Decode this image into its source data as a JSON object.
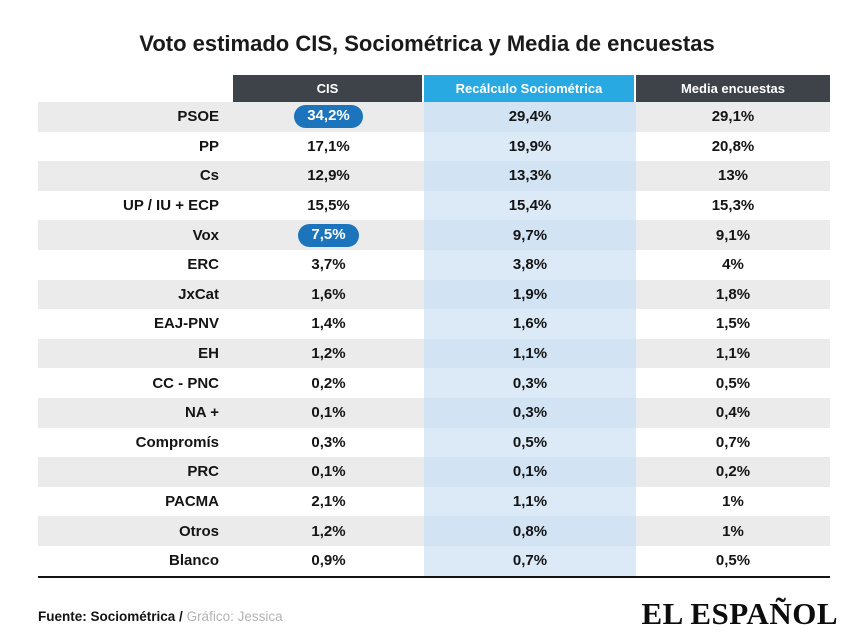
{
  "title": "Voto estimado CIS, Sociométrica y Media de encuestas",
  "table": {
    "headers": [
      "CIS",
      "Recálculo Sociométrica",
      "Media encuestas"
    ],
    "rows": [
      {
        "party": "PSOE",
        "cis": "34,2%",
        "socio": "29,4%",
        "media": "29,1%",
        "cis_highlight": true
      },
      {
        "party": "PP",
        "cis": "17,1%",
        "socio": "19,9%",
        "media": "20,8%",
        "cis_highlight": false
      },
      {
        "party": "Cs",
        "cis": "12,9%",
        "socio": "13,3%",
        "media": "13%",
        "cis_highlight": false
      },
      {
        "party": "UP / IU + ECP",
        "cis": "15,5%",
        "socio": "15,4%",
        "media": "15,3%",
        "cis_highlight": false
      },
      {
        "party": "Vox",
        "cis": "7,5%",
        "socio": "9,7%",
        "media": "9,1%",
        "cis_highlight": true
      },
      {
        "party": "ERC",
        "cis": "3,7%",
        "socio": "3,8%",
        "media": "4%",
        "cis_highlight": false
      },
      {
        "party": "JxCat",
        "cis": "1,6%",
        "socio": "1,9%",
        "media": "1,8%",
        "cis_highlight": false
      },
      {
        "party": "EAJ-PNV",
        "cis": "1,4%",
        "socio": "1,6%",
        "media": "1,5%",
        "cis_highlight": false
      },
      {
        "party": "EH",
        "cis": "1,2%",
        "socio": "1,1%",
        "media": "1,1%",
        "cis_highlight": false
      },
      {
        "party": "CC - PNC",
        "cis": "0,2%",
        "socio": "0,3%",
        "media": "0,5%",
        "cis_highlight": false
      },
      {
        "party": "NA +",
        "cis": "0,1%",
        "socio": "0,3%",
        "media": "0,4%",
        "cis_highlight": false
      },
      {
        "party": "Compromís",
        "cis": "0,3%",
        "socio": "0,5%",
        "media": "0,7%",
        "cis_highlight": false
      },
      {
        "party": "PRC",
        "cis": "0,1%",
        "socio": "0,1%",
        "media": "0,2%",
        "cis_highlight": false
      },
      {
        "party": "PACMA",
        "cis": "2,1%",
        "socio": "1,1%",
        "media": "1%",
        "cis_highlight": false
      },
      {
        "party": "Otros",
        "cis": "1,2%",
        "socio": "0,8%",
        "media": "1%",
        "cis_highlight": false
      },
      {
        "party": "Blanco",
        "cis": "0,9%",
        "socio": "0,7%",
        "media": "0,5%",
        "cis_highlight": false
      }
    ]
  },
  "footer": {
    "source": "Fuente: Sociométrica /",
    "credit": "Gráfico: Jessica"
  },
  "brand": "EL ESPAÑOL",
  "colors": {
    "header_dark": "#3e4349",
    "header_blue": "#29a9e1",
    "column_blue": "#dceaf8",
    "column_blue_striped": "#d2e4f4",
    "row_gray": "#ebebeb",
    "pill_blue": "#1b74bc"
  },
  "chart_data": {
    "type": "table",
    "title": "Voto estimado CIS, Sociométrica y Media de encuestas",
    "categories": [
      "PSOE",
      "PP",
      "Cs",
      "UP / IU + ECP",
      "Vox",
      "ERC",
      "JxCat",
      "EAJ-PNV",
      "EH",
      "CC - PNC",
      "NA +",
      "Compromís",
      "PRC",
      "PACMA",
      "Otros",
      "Blanco"
    ],
    "series": [
      {
        "name": "CIS",
        "values": [
          34.2,
          17.1,
          12.9,
          15.5,
          7.5,
          3.7,
          1.6,
          1.4,
          1.2,
          0.2,
          0.1,
          0.3,
          0.1,
          2.1,
          1.2,
          0.9
        ]
      },
      {
        "name": "Recálculo Sociométrica",
        "values": [
          29.4,
          19.9,
          13.3,
          15.4,
          9.7,
          3.8,
          1.9,
          1.6,
          1.1,
          0.3,
          0.3,
          0.5,
          0.1,
          1.1,
          0.8,
          0.7
        ]
      },
      {
        "name": "Media encuestas",
        "values": [
          29.1,
          20.8,
          13.0,
          15.3,
          9.1,
          4.0,
          1.8,
          1.5,
          1.1,
          0.5,
          0.4,
          0.7,
          0.2,
          1.0,
          1.0,
          0.5
        ]
      }
    ],
    "highlighted_cells": [
      {
        "category": "PSOE",
        "series": "CIS"
      },
      {
        "category": "Vox",
        "series": "CIS"
      }
    ],
    "units": "%",
    "decimal_separator": ","
  }
}
